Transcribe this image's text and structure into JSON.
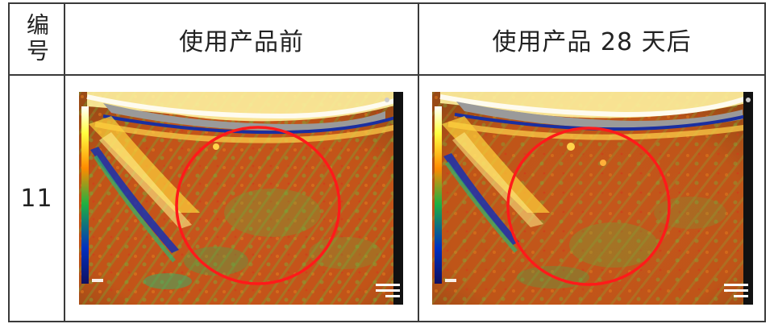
{
  "table": {
    "headers": {
      "number": "编号",
      "before": "使用产品前",
      "after": "使用产品 28 天后"
    },
    "rows": [
      {
        "number": "11"
      }
    ]
  },
  "colors": {
    "border": "#3a3a3a",
    "annotation_circle": "#ff1a1a",
    "ultrasound_background": "#c8501a"
  }
}
